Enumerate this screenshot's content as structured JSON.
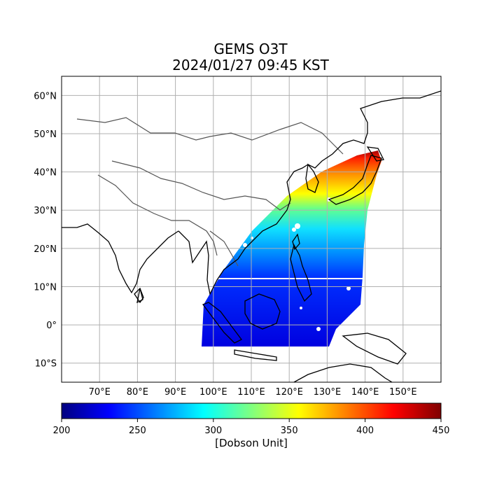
{
  "title": "GEMS O3T",
  "subtitle": "2024/01/27 09:45 KST",
  "map": {
    "lon_range": [
      60,
      160
    ],
    "lat_range": [
      -15,
      65
    ],
    "lon_ticks": [
      "70°E",
      "80°E",
      "90°E",
      "100°E",
      "110°E",
      "120°E",
      "130°E",
      "140°E",
      "150°E"
    ],
    "lat_ticks": [
      "60°N",
      "50°N",
      "40°N",
      "30°N",
      "20°N",
      "10°N",
      "0°",
      "10°S"
    ],
    "grid": true,
    "variable": "Total column ozone (O3T)",
    "colormap": "jet"
  },
  "colorbar": {
    "label": "[Dobson Unit]",
    "min": 200,
    "max": 450,
    "ticks": [
      "200",
      "250",
      "300",
      "350",
      "400",
      "450"
    ]
  },
  "colors": {
    "jet": [
      "#00007f",
      "#0000ff",
      "#007fff",
      "#00ffff",
      "#7fff7f",
      "#ffff00",
      "#ff7f00",
      "#ff0000",
      "#7f0000"
    ],
    "grid": "#b0b0b0",
    "coast": "#000000",
    "border": "#555555"
  }
}
